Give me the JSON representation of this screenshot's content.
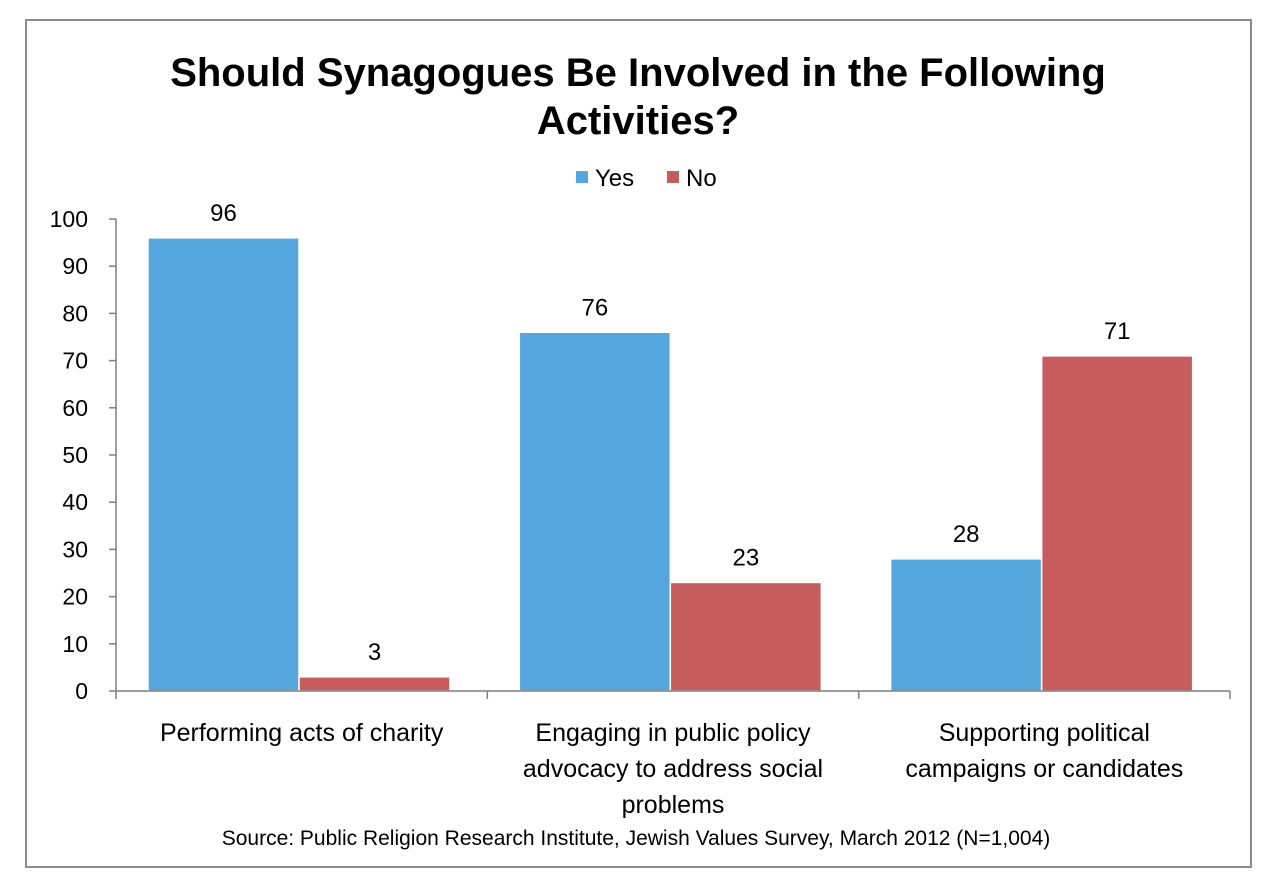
{
  "chart_data": {
    "type": "bar",
    "title_lines": [
      "Should Synagogues Be Involved in the Following",
      "Activities?"
    ],
    "categories": [
      [
        "Performing acts of charity"
      ],
      [
        "Engaging in public policy",
        "advocacy to address social",
        "problems"
      ],
      [
        "Supporting political",
        "campaigns or candidates"
      ]
    ],
    "series": [
      {
        "name": "Yes",
        "color": "#55a6dc",
        "values": [
          96,
          76,
          28
        ]
      },
      {
        "name": "No",
        "color": "#c65c5c",
        "values": [
          3,
          23,
          71
        ]
      }
    ],
    "ylim": [
      0,
      100
    ],
    "yticks": [
      0,
      10,
      20,
      30,
      40,
      50,
      60,
      70,
      80,
      90,
      100
    ],
    "data_labels": true,
    "legend_position": "top-center",
    "grid": false,
    "source": "Source: Public Religion Research Institute, Jewish Values Survey, March 2012 (N=1,004)"
  }
}
